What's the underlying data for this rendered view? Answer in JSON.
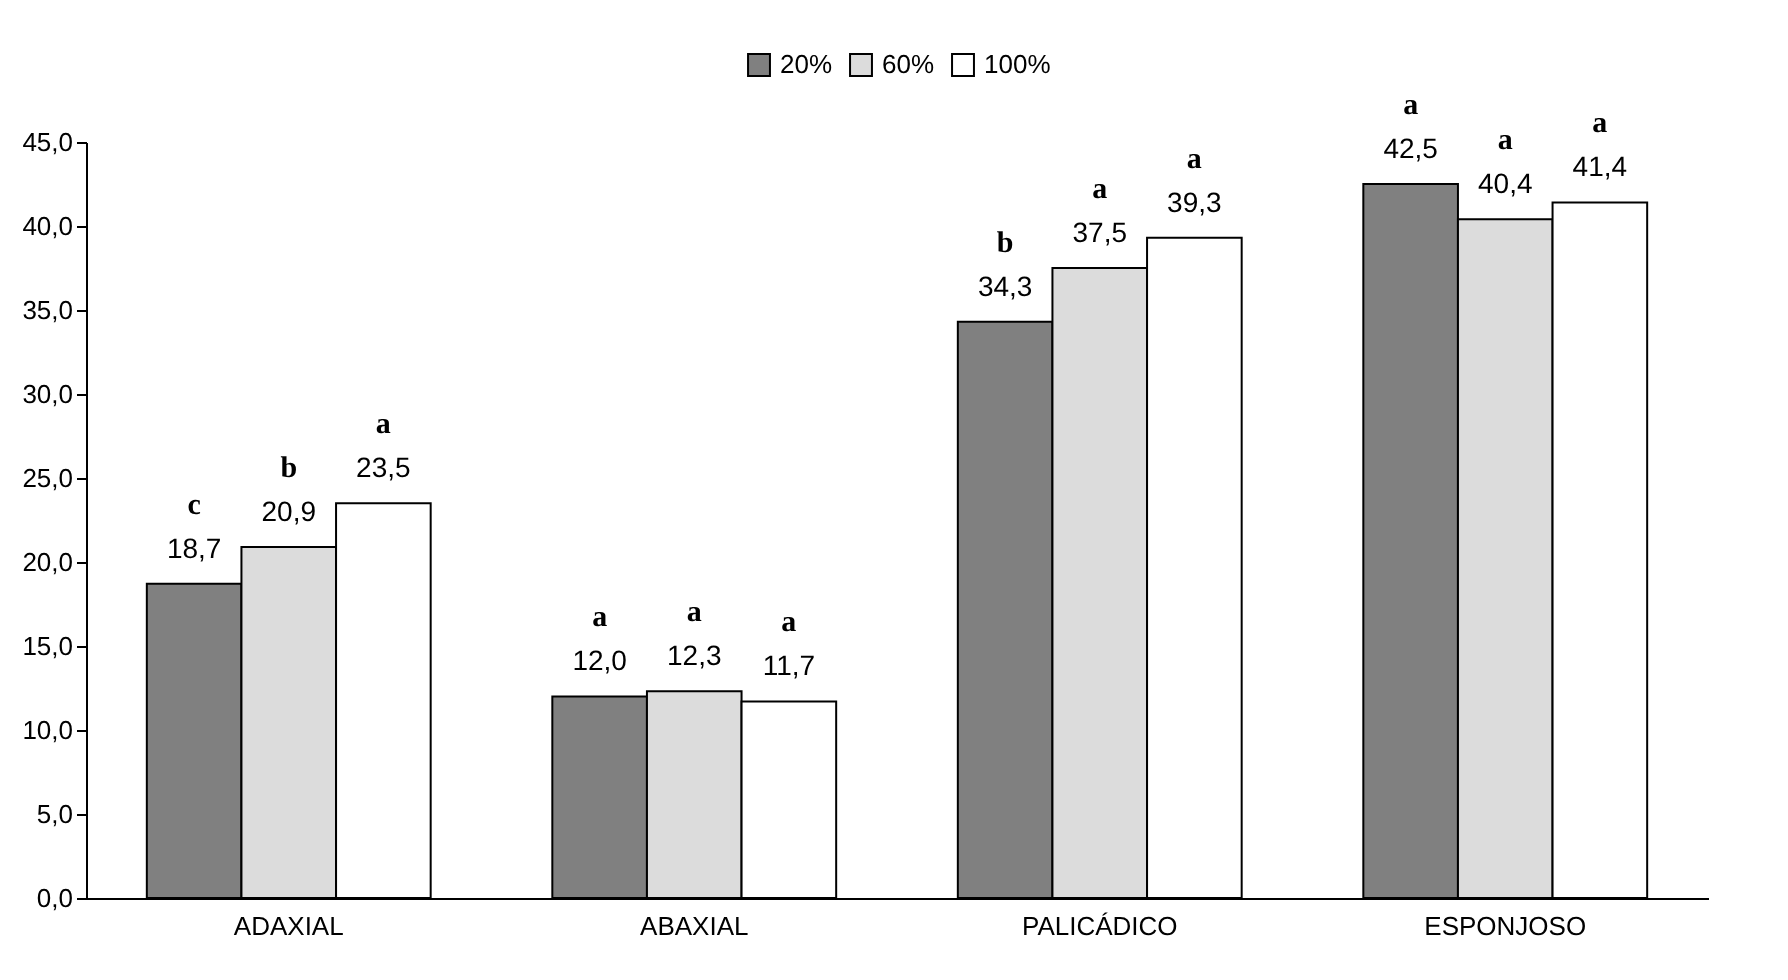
{
  "chart_data": {
    "type": "bar",
    "categories": [
      "ADAXIAL",
      "ABAXIAL",
      "PALICÁDICO",
      "ESPONJOSO"
    ],
    "series": [
      {
        "name": "20%",
        "color": "#808080",
        "values": [
          18.7,
          12.0,
          34.3,
          42.5
        ],
        "value_labels": [
          "18,7",
          "12,0",
          "34,3",
          "42,5"
        ]
      },
      {
        "name": "60%",
        "color": "#dcdcdc",
        "values": [
          20.9,
          12.3,
          37.5,
          40.4
        ],
        "value_labels": [
          "20,9",
          "12,3",
          "37,5",
          "40,4"
        ]
      },
      {
        "name": "100%",
        "color": "#ffffff",
        "values": [
          23.5,
          11.7,
          39.3,
          41.4
        ],
        "value_labels": [
          "23,5",
          "11,7",
          "39,3",
          "41,4"
        ]
      }
    ],
    "ylim": [
      0,
      45
    ],
    "yticks": [
      {
        "value": 0,
        "label": "0,0"
      },
      {
        "value": 5,
        "label": "5,0"
      },
      {
        "value": 10,
        "label": "10,0"
      },
      {
        "value": 15,
        "label": "15,0"
      },
      {
        "value": 20,
        "label": "20,0"
      },
      {
        "value": 25,
        "label": "25,0"
      },
      {
        "value": 30,
        "label": "30,0"
      },
      {
        "value": 35,
        "label": "35,0"
      },
      {
        "value": 40,
        "label": "40,0"
      },
      {
        "value": 45,
        "label": "45,0"
      }
    ],
    "grid": false,
    "legend": "top",
    "annotations": [
      "c",
      "b",
      "a",
      "a",
      "a",
      "a",
      "b",
      "a",
      "a",
      "a",
      "a",
      "a"
    ]
  }
}
